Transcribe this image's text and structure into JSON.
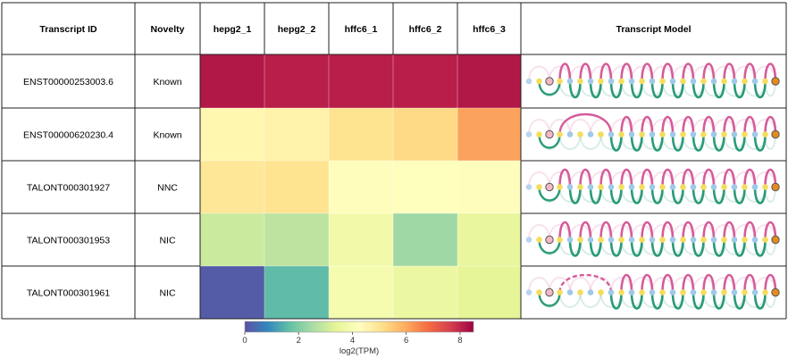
{
  "table": {
    "columns": [
      "Transcript ID",
      "Novelty",
      "hepg2_1",
      "hepg2_2",
      "hffc6_1",
      "hffc6_2",
      "hffc6_3",
      "Transcript Model"
    ],
    "rows": [
      {
        "transcript_id": "ENST00000253003.6",
        "novelty": "Known"
      },
      {
        "transcript_id": "ENST00000620230.4",
        "novelty": "Known"
      },
      {
        "transcript_id": "TALONT000301927",
        "novelty": "NNC"
      },
      {
        "transcript_id": "TALONT000301953",
        "novelty": "NIC"
      },
      {
        "transcript_id": "TALONT000301961",
        "novelty": "NIC"
      }
    ]
  },
  "chart_data": {
    "type": "heatmap",
    "samples": [
      "hepg2_1",
      "hepg2_2",
      "hffc6_1",
      "hffc6_2",
      "hffc6_3"
    ],
    "transcripts": [
      "ENST00000253003.6",
      "ENST00000620230.4",
      "TALONT000301927",
      "TALONT000301953",
      "TALONT000301961"
    ],
    "values": [
      [
        8.2,
        8.1,
        8.1,
        8.1,
        8.2
      ],
      [
        4.5,
        4.6,
        5.0,
        5.2,
        6.1
      ],
      [
        4.9,
        5.0,
        4.3,
        4.2,
        4.3
      ],
      [
        3.0,
        2.8,
        3.8,
        2.4,
        3.5
      ],
      [
        0.2,
        1.6,
        3.9,
        3.6,
        3.4
      ]
    ],
    "colorbar": {
      "label": "log2(TPM)",
      "ticks": [
        0,
        2,
        4,
        6,
        8
      ],
      "range": [
        0,
        8.5
      ],
      "colormap": "Spectral_r"
    }
  },
  "transcript_models": {
    "node_colors": {
      "gene_start": "#b8d4ee",
      "gene_end": "#e58a1f",
      "known_donor": "#9ec9e8",
      "known_acceptor": "#f4dd5c",
      "novel": "#f2b8c6"
    },
    "edge_colors": {
      "exon": "#2a9a78",
      "intron": "#d55c9a"
    }
  }
}
